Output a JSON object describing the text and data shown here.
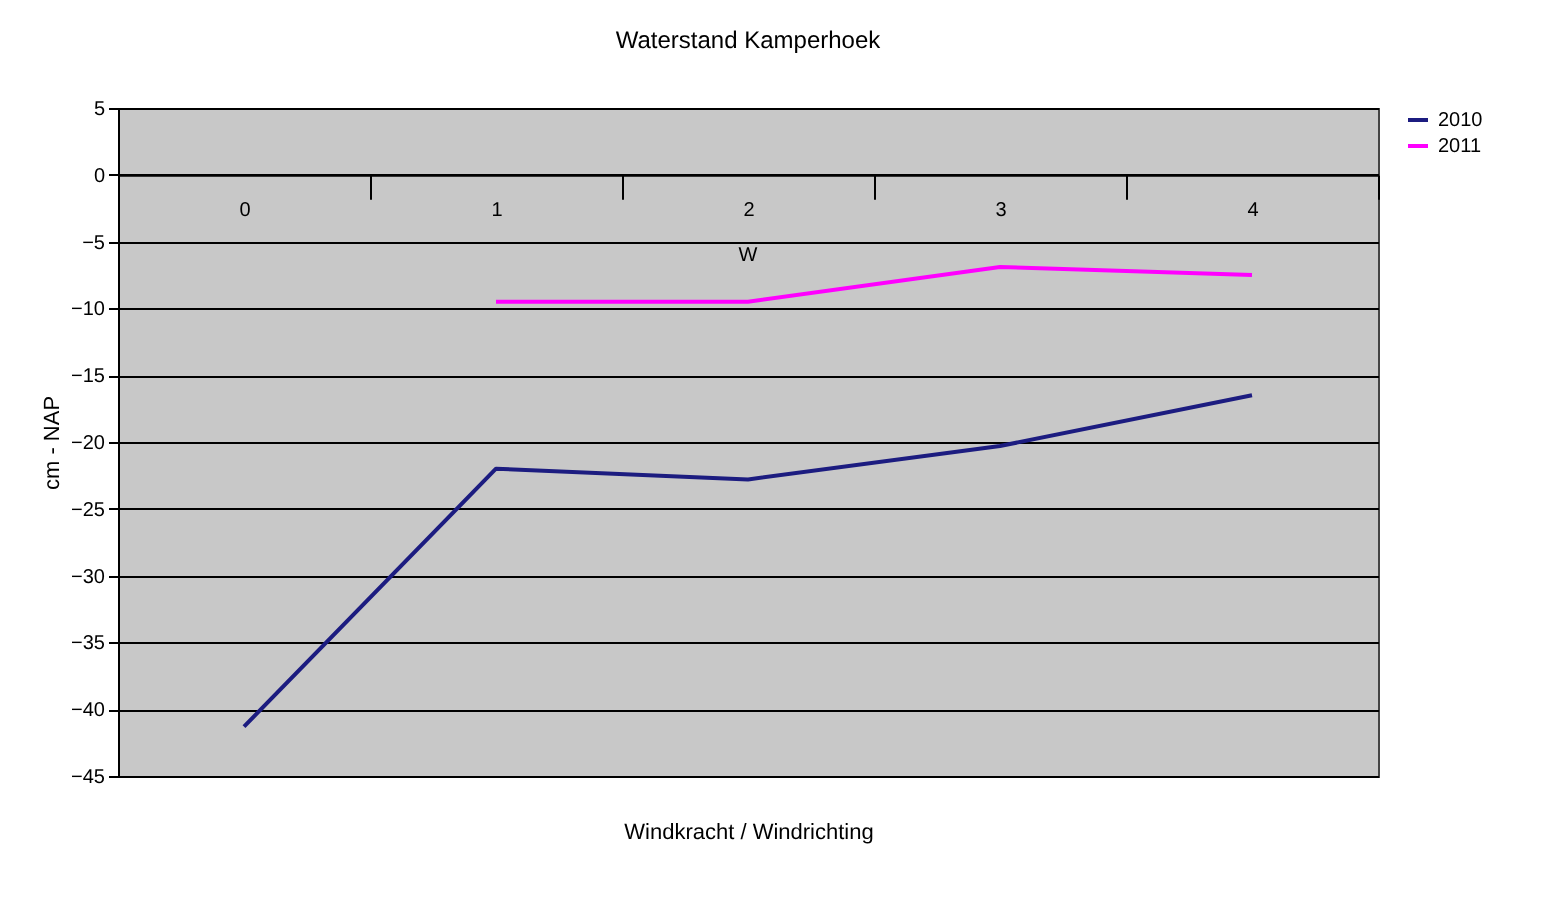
{
  "chart_data": {
    "type": "line",
    "title": "Waterstand Kamperhoek",
    "xlabel": "Windkracht / Windrichting",
    "ylabel": "cm - NAP",
    "categories": [
      "0",
      "1",
      "2",
      "3",
      "4"
    ],
    "series": [
      {
        "name": "2010",
        "color": "#1c1c80",
        "values": [
          -41.3,
          -22,
          -22.8,
          -20.3,
          -16.5
        ]
      },
      {
        "name": "2011",
        "color": "#ff00ff",
        "values": [
          null,
          -9.5,
          -9.5,
          -6.9,
          -7.5
        ]
      }
    ],
    "ylim": [
      -45,
      5
    ],
    "yticks": [
      -45,
      -40,
      -35,
      -30,
      -25,
      -20,
      -15,
      -10,
      -5,
      0,
      5
    ],
    "grid": "y",
    "legend": "right",
    "marker": "none",
    "line_style": "solid",
    "annotations": [
      "W"
    ]
  }
}
